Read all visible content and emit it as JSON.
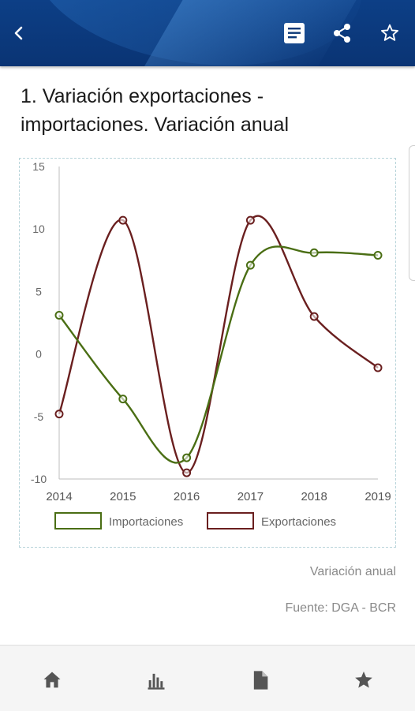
{
  "header": {
    "back_icon": "chevron-left-icon",
    "actions": [
      "document-icon",
      "share-icon",
      "star-outline-icon"
    ]
  },
  "page_title": "1. Variación exportaciones - importaciones. Variación anual",
  "chart_data": {
    "type": "line",
    "x": [
      "2014",
      "2015",
      "2016",
      "2017",
      "2018",
      "2019"
    ],
    "series": [
      {
        "name": "Importaciones",
        "color": "#4a6e14",
        "values": [
          3.1,
          -3.6,
          -8.3,
          7.1,
          8.1,
          7.9
        ]
      },
      {
        "name": "Exportaciones",
        "color": "#6a1f1f",
        "values": [
          -4.8,
          10.7,
          -9.5,
          10.7,
          3.0,
          -1.1
        ]
      }
    ],
    "yticks": [
      "15",
      "10",
      "5",
      "0",
      "-5",
      "-10"
    ],
    "ylim": [
      -10,
      15
    ],
    "xlabel": "",
    "ylabel": "",
    "legend": "bottom",
    "grid": false
  },
  "captions": {
    "subtitle": "Variación anual",
    "source": "Fuente: DGA - BCR"
  },
  "bottom_nav": [
    "home-icon",
    "bar-chart-icon",
    "document-icon",
    "star-icon"
  ]
}
